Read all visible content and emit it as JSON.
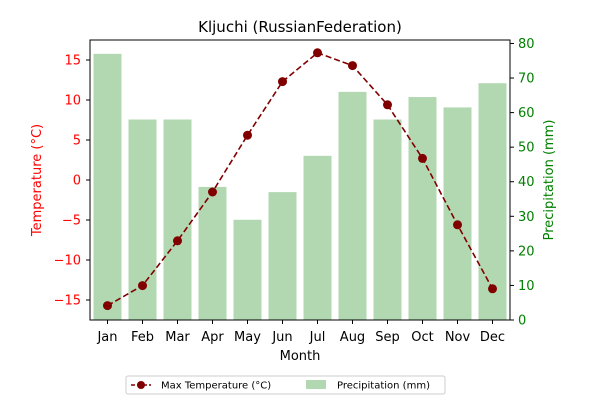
{
  "chart_data": {
    "type": "bar+line",
    "title": "Kljuchi (RussianFederation)",
    "xlabel": "Month",
    "ylabel_left": "Temperature (°C)",
    "ylabel_right": "Precipitation (mm)",
    "categories": [
      "Jan",
      "Feb",
      "Mar",
      "Apr",
      "May",
      "Jun",
      "Jul",
      "Aug",
      "Sep",
      "Oct",
      "Nov",
      "Dec"
    ],
    "series": [
      {
        "name": "Max Temperature (°C)",
        "kind": "line",
        "axis": "left",
        "color": "#800000",
        "values": [
          -15.7,
          -13.2,
          -7.6,
          -1.5,
          5.6,
          12.3,
          15.9,
          14.3,
          9.4,
          2.7,
          -5.6,
          -13.6
        ]
      },
      {
        "name": "Precipitation (mm)",
        "kind": "bar",
        "axis": "right",
        "color": "#b2d8b2",
        "values": [
          77,
          58,
          58,
          38.5,
          29,
          37,
          47.5,
          66,
          58,
          64.5,
          61.5,
          68.5
        ]
      }
    ],
    "ylim_left": [
      -17.5,
      17.5
    ],
    "yticks_left": [
      -15,
      -10,
      -5,
      0,
      5,
      10,
      15
    ],
    "ylim_right": [
      0,
      81
    ],
    "yticks_right": [
      0,
      10,
      20,
      30,
      40,
      50,
      60,
      70,
      80
    ],
    "left_axis_color": "#ff0000",
    "right_axis_color": "#008000",
    "grid": false,
    "legend_position": "bottom-center"
  }
}
